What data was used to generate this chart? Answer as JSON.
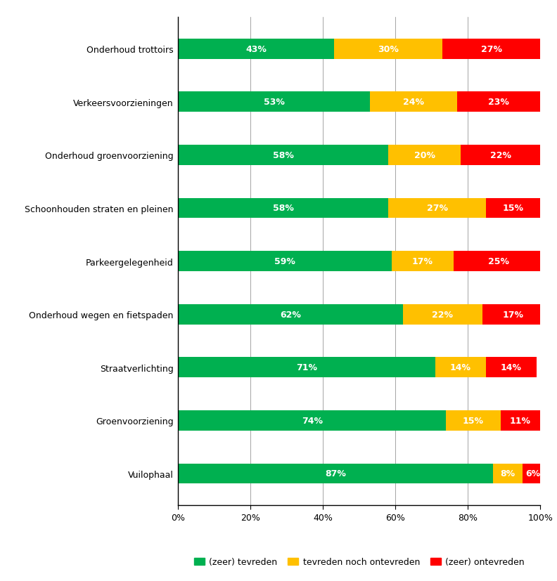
{
  "categories": [
    "Onderhoud trottoirs",
    "Verkeersvoorzieningen",
    "Onderhoud groenvoorziening",
    "Schoonhouden straten en pleinen",
    "Parkeergelegenheid",
    "Onderhoud wegen en fietspaden",
    "Straatverlichting",
    "Groenvoorziening",
    "Vuilophaal"
  ],
  "tevreden": [
    43,
    53,
    58,
    58,
    59,
    62,
    71,
    74,
    87
  ],
  "neutraal": [
    30,
    24,
    20,
    27,
    17,
    22,
    14,
    15,
    8
  ],
  "ontevreden": [
    27,
    23,
    22,
    15,
    25,
    17,
    14,
    11,
    6
  ],
  "color_tevreden": "#00B050",
  "color_neutraal": "#FFC000",
  "color_ontevreden": "#FF0000",
  "legend_labels": [
    "(zeer) tevreden",
    "tevreden noch ontevreden",
    "(zeer) ontevreden"
  ],
  "bar_height": 0.38,
  "xlim": [
    0,
    100
  ],
  "xtick_labels": [
    "0%",
    "20%",
    "40%",
    "60%",
    "80%",
    "100%"
  ],
  "xtick_values": [
    0,
    20,
    40,
    60,
    80,
    100
  ],
  "figsize": [
    7.92,
    8.28
  ],
  "dpi": 100,
  "plot_bg_color": "#FFFFFF",
  "fig_bg_color": "#FFFFFF",
  "label_fontsize": 9,
  "tick_fontsize": 9,
  "legend_fontsize": 9,
  "grid_color": "#808080",
  "spine_color": "#000000"
}
